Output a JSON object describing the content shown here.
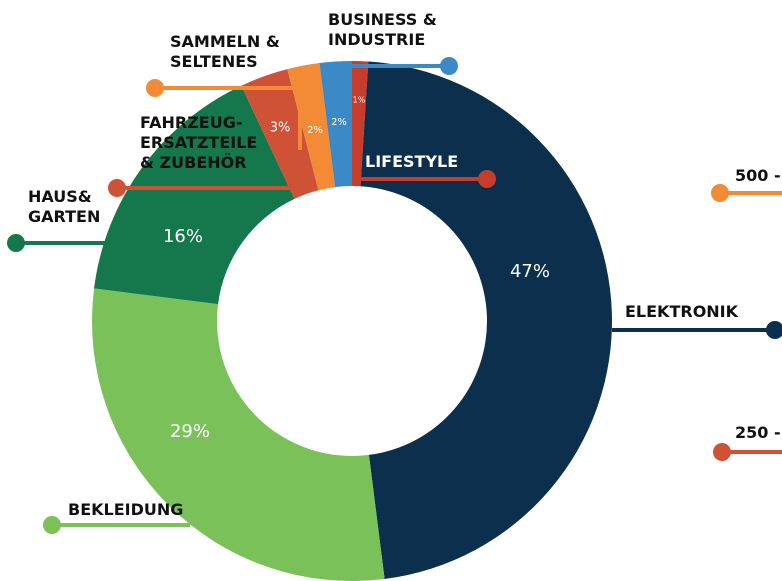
{
  "chart_data": {
    "type": "donut",
    "categories": [
      "LIFESTYLE",
      "ELEKTRONIK",
      "BEKLEIDUNG",
      "HAUS&\nGARTEN",
      "FAHRZEUG-\nERSATZTEILE\n& ZUBEHÖR",
      "SAMMELN &\nSELTENES",
      "BUSINESS &\nINDUSTRIE"
    ],
    "values": [
      1,
      47,
      29,
      16,
      3,
      2,
      2
    ],
    "value_labels": [
      "1%",
      "47%",
      "29%",
      "16%",
      "3%",
      "2%",
      "2%"
    ],
    "colors": [
      "#c63d2d",
      "#0c2f4e",
      "#7bc159",
      "#14784c",
      "#cf5136",
      "#f28a36",
      "#3c89c7"
    ]
  },
  "side_labels": [
    {
      "text": "500 -",
      "color": "#f28a36"
    },
    {
      "text": "250 -",
      "color": "#cf5136"
    }
  ]
}
